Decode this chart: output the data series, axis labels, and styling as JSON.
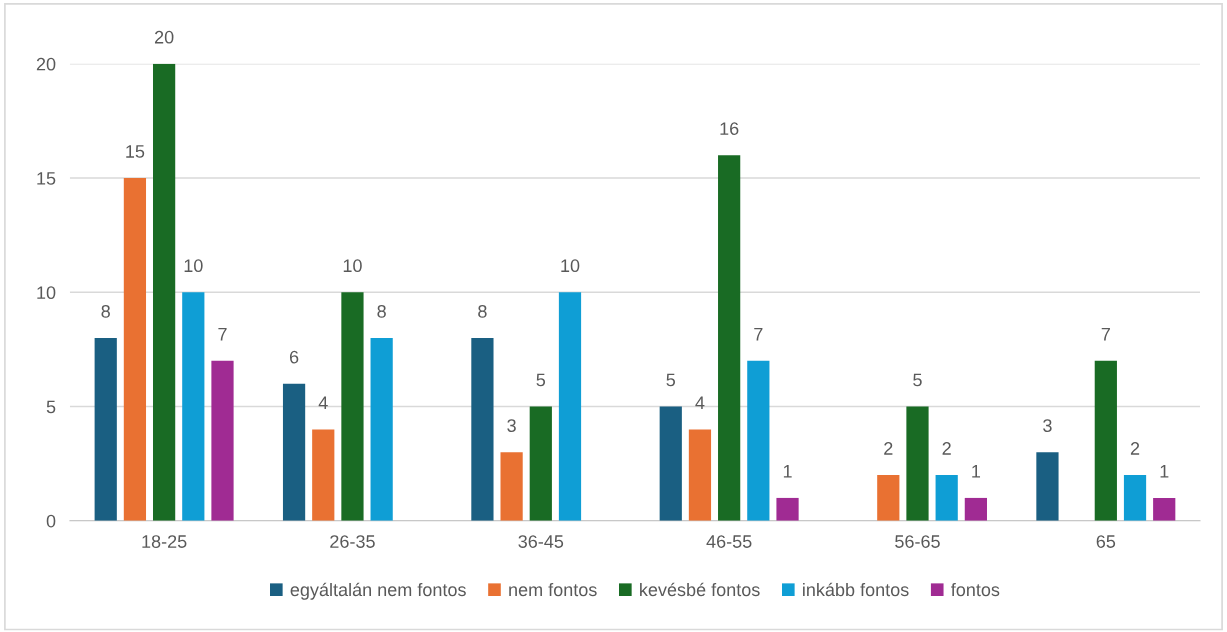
{
  "chart_data": {
    "type": "bar",
    "categories": [
      "18-25",
      "26-35",
      "36-45",
      "46-55",
      "56-65",
      "65"
    ],
    "series": [
      {
        "name": "egyáltalán nem fontos",
        "color": "#1a5f82",
        "values": [
          8,
          6,
          8,
          5,
          null,
          3
        ]
      },
      {
        "name": "nem fontos",
        "color": "#e97132",
        "values": [
          15,
          4,
          3,
          4,
          2,
          null
        ]
      },
      {
        "name": "kevésbé fontos",
        "color": "#196b24",
        "values": [
          20,
          10,
          5,
          16,
          5,
          7
        ]
      },
      {
        "name": "inkább fontos",
        "color": "#0f9ed5",
        "values": [
          10,
          8,
          10,
          7,
          2,
          2
        ]
      },
      {
        "name": "fontos",
        "color": "#a02b93",
        "values": [
          7,
          null,
          null,
          1,
          1,
          1
        ]
      }
    ],
    "ylim": [
      0,
      20
    ],
    "yticks": [
      0,
      5,
      10,
      15,
      20
    ],
    "grid": "y",
    "legend": "bottom",
    "data_labels": true
  }
}
